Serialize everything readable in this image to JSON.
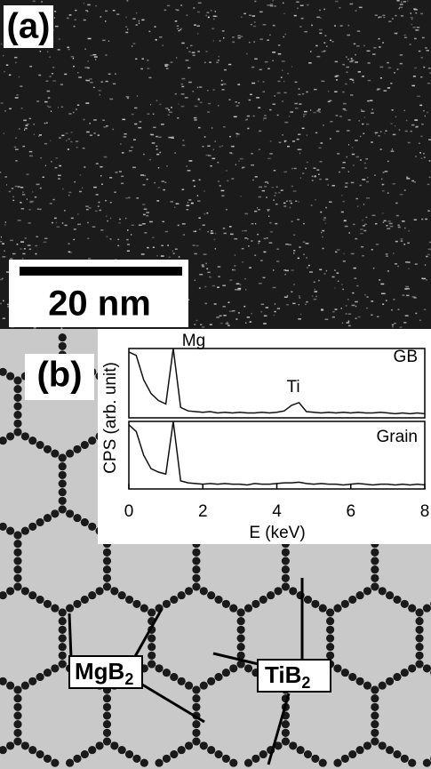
{
  "panel_a": {
    "label": "(a)",
    "scale_bar": "20 nm"
  },
  "panel_b": {
    "label": "(b)",
    "chart": {
      "type": "line",
      "x_label": "E (keV)",
      "y_label": "CPS (arb. unit)",
      "xlim": [
        0,
        8
      ],
      "xticks": [
        0,
        2,
        4,
        6,
        8
      ],
      "ylim": [
        0,
        100
      ],
      "x": [
        0,
        0.2,
        0.4,
        0.6,
        0.8,
        1.0,
        1.2,
        1.4,
        1.6,
        1.8,
        2.0,
        2.2,
        2.4,
        2.6,
        2.8,
        3.0,
        3.2,
        3.4,
        3.6,
        3.8,
        4.0,
        4.2,
        4.4,
        4.6,
        4.8,
        5.0,
        5.2,
        5.4,
        5.6,
        5.8,
        6.0,
        6.2,
        6.4,
        6.6,
        6.8,
        7.0,
        7.2,
        7.4,
        7.6,
        7.8,
        8.0
      ],
      "series": [
        {
          "name": "GB",
          "color": "#111111",
          "values": [
            95,
            90,
            55,
            35,
            25,
            20,
            100,
            15,
            10,
            9,
            8,
            9,
            7,
            8,
            7,
            8,
            7,
            7,
            8,
            7,
            8,
            10,
            18,
            22,
            9,
            8,
            7,
            8,
            7,
            8,
            7,
            8,
            7,
            7,
            8,
            7,
            6,
            7,
            6,
            7,
            6
          ]
        },
        {
          "name": "Grain",
          "color": "#111111",
          "values": [
            95,
            85,
            50,
            30,
            25,
            22,
            100,
            12,
            9,
            8,
            7,
            8,
            7,
            8,
            7,
            7,
            6,
            8,
            7,
            7,
            8,
            9,
            9,
            10,
            8,
            7,
            8,
            7,
            7,
            6,
            7,
            8,
            7,
            6,
            7,
            7,
            6,
            7,
            6,
            7,
            6
          ]
        }
      ],
      "annotations": [
        "Mg",
        "Ti"
      ]
    },
    "callouts": [
      {
        "text": "MgB",
        "subscript": "2"
      },
      {
        "text": "TiB",
        "subscript": "2"
      }
    ]
  }
}
